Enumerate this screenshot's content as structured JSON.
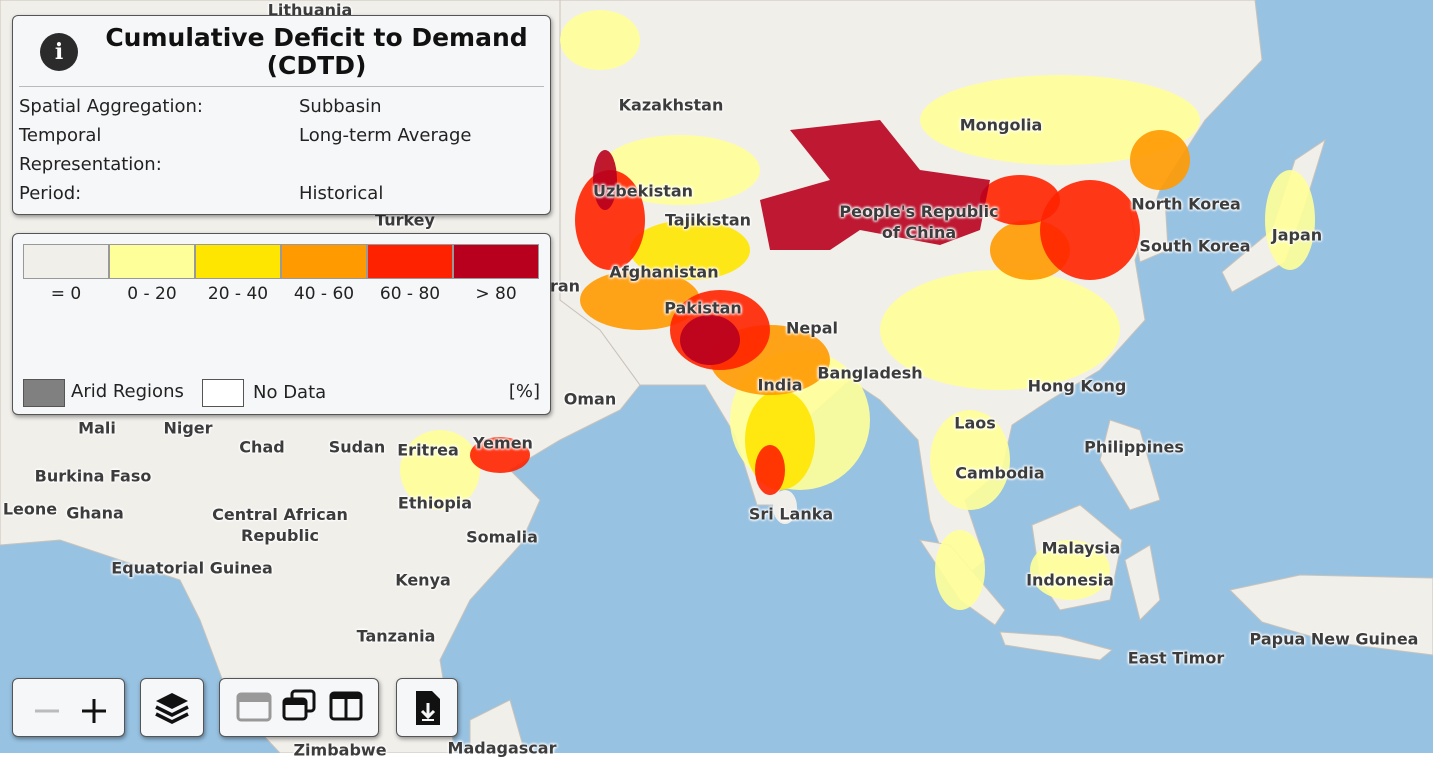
{
  "info_panel": {
    "title": "Cumulative Deficit to Demand (CDTD)",
    "rows": [
      [
        "Spatial Aggregation:",
        "Subbasin"
      ],
      [
        "Temporal Representation:",
        "Long-term Average"
      ],
      [
        "Period:",
        "Historical"
      ]
    ]
  },
  "legend": {
    "items": [
      {
        "label": "= 0",
        "color": "#f1efea"
      },
      {
        "label": "0 - 20",
        "color": "#ffff99"
      },
      {
        "label": "20 - 40",
        "color": "#ffe600"
      },
      {
        "label": "40 - 60",
        "color": "#ff9a00"
      },
      {
        "label": "60 - 80",
        "color": "#ff2200"
      },
      {
        "label": "> 80",
        "color": "#b8001e"
      }
    ],
    "arid": {
      "label": "Arid Regions",
      "color": "#808080"
    },
    "no_data": {
      "label": "No Data",
      "color": "#ffffff"
    },
    "unit": "[%]"
  },
  "map_labels": [
    "Lithuania",
    "Kazakhstan",
    "Mongolia",
    "Uzbekistan",
    "Tajikistan",
    "Turkey",
    "People's Republic of China",
    "North Korea",
    "South Korea",
    "Japan",
    "Afghanistan",
    "Iran",
    "Pakistan",
    "Nepal",
    "India",
    "Bangladesh",
    "Hong Kong",
    "Oman",
    "Laos",
    "Philippines",
    "Cambodia",
    "Yemen",
    "Eritrea",
    "Sudan",
    "Chad",
    "Niger",
    "Mali",
    "Burkina Faso",
    "Ghana",
    "Leone",
    "Ethiopia",
    "Central African Republic",
    "Somalia",
    "Sri Lanka",
    "Malaysia",
    "Indonesia",
    "Equatorial Guinea",
    "Kenya",
    "Tanzania",
    "Papua New Guinea",
    "East Timor",
    "Zimbabwe",
    "Madagascar"
  ]
}
